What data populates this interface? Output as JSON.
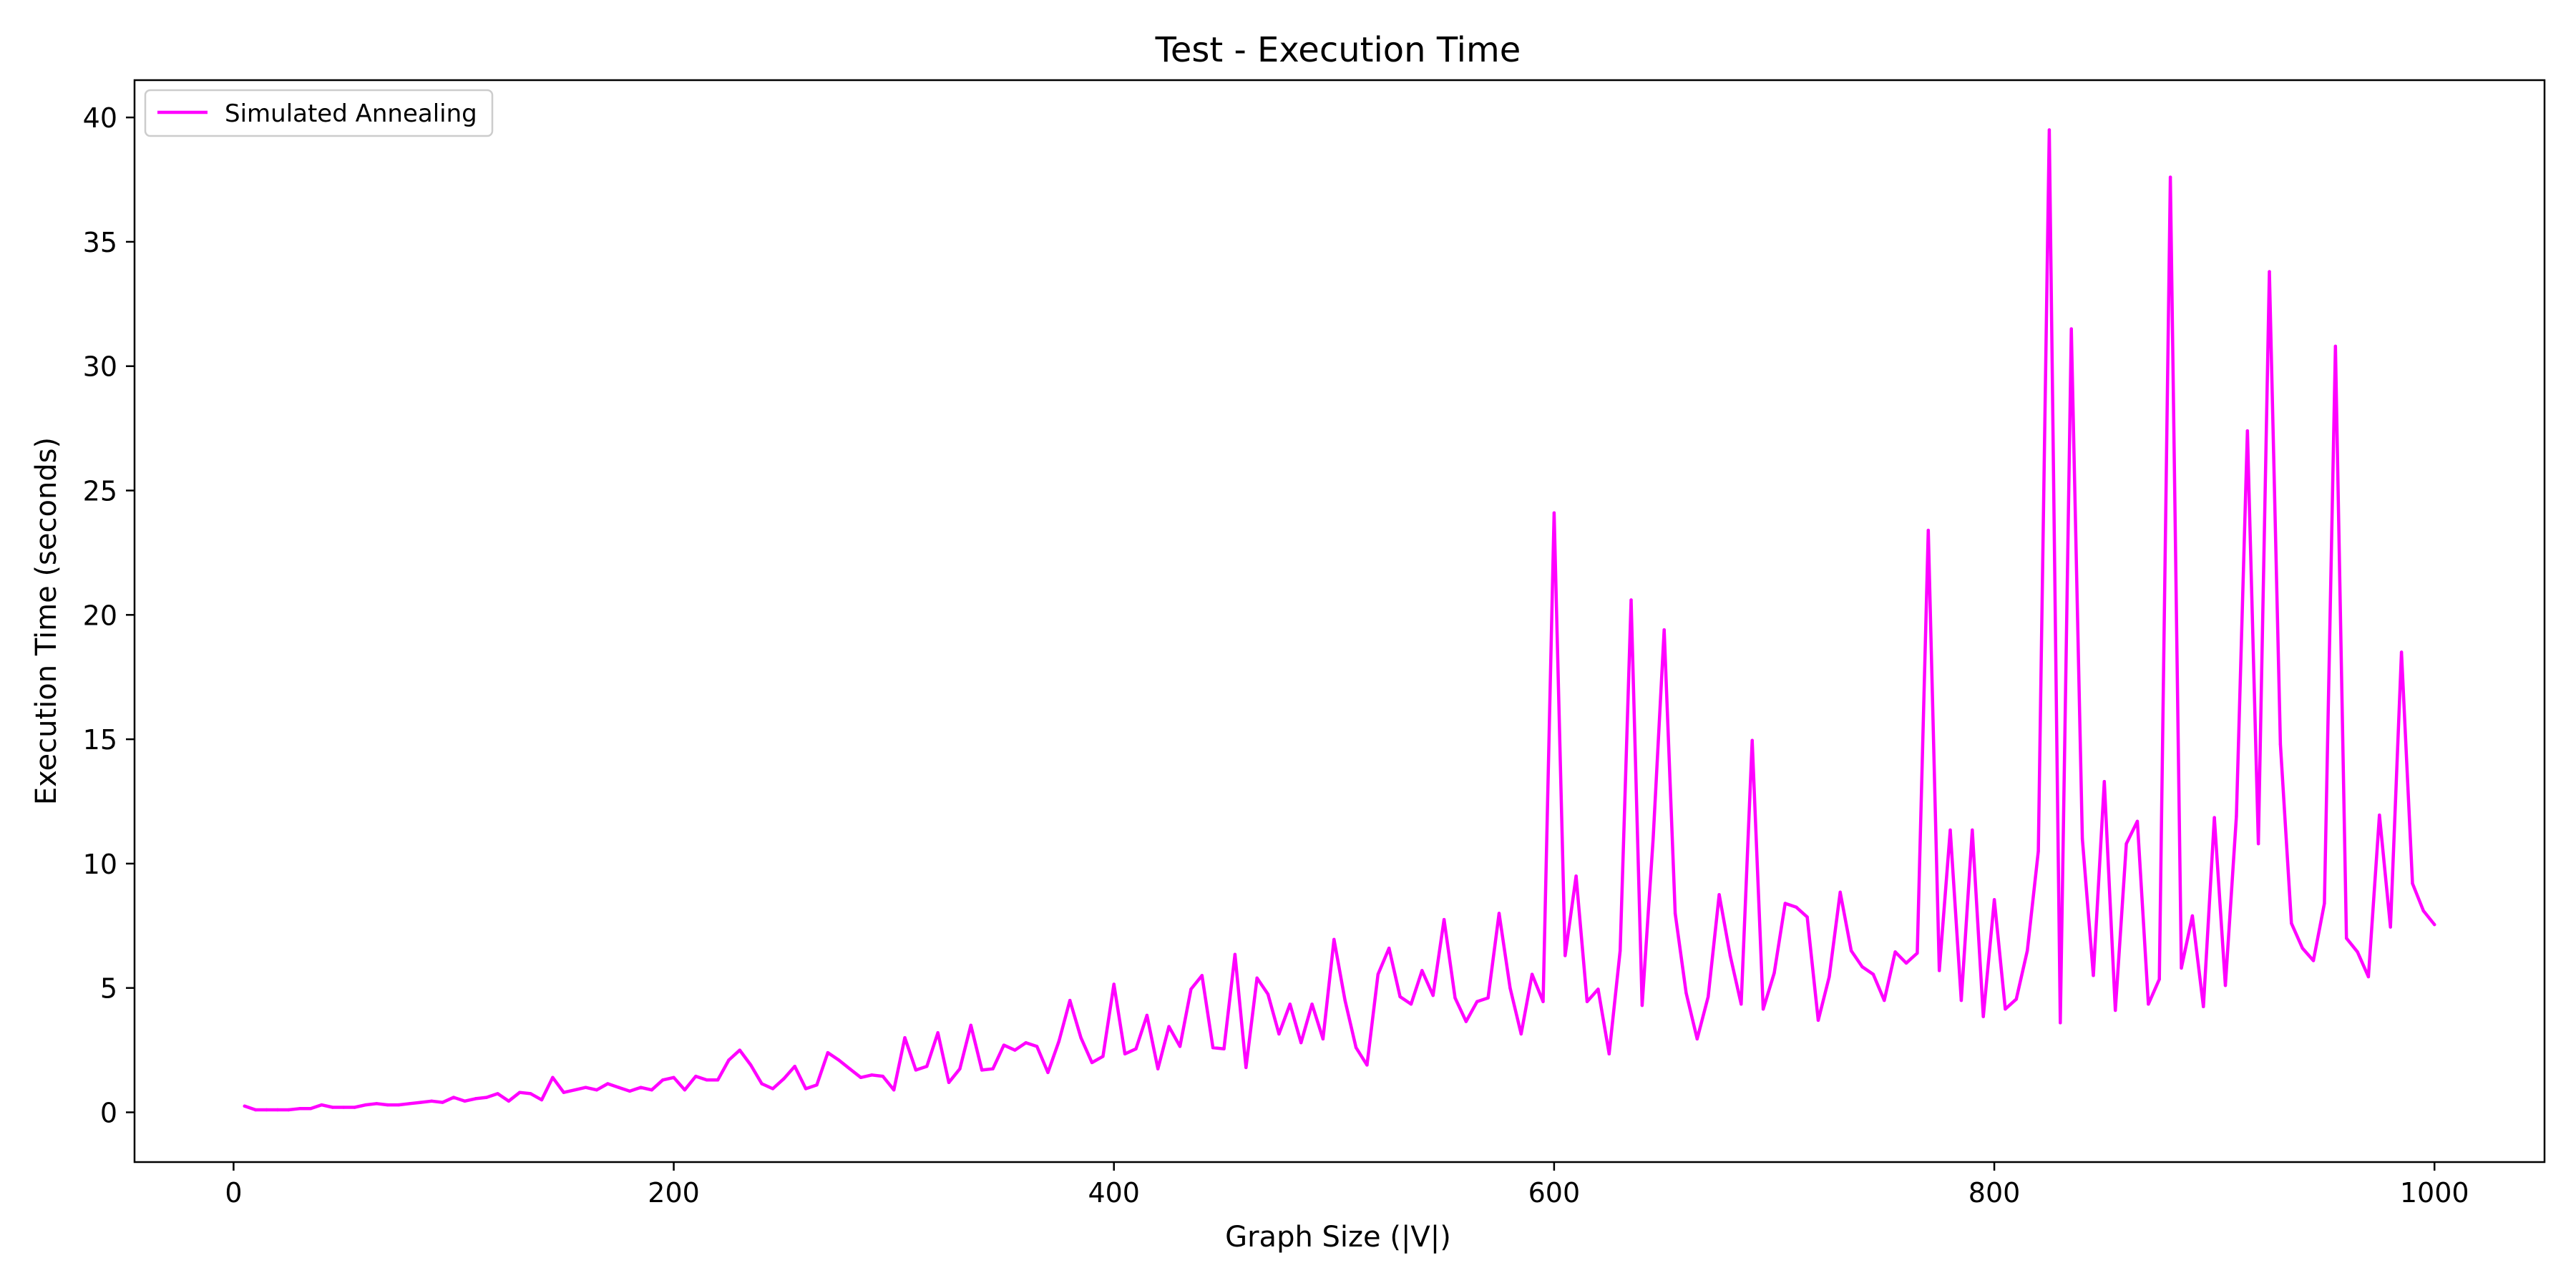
{
  "chart_data": {
    "type": "line",
    "title": "Test - Execution Time",
    "xlabel": "Graph Size (|V|)",
    "ylabel": "Execution Time (seconds)",
    "xlim": [
      -45,
      1050
    ],
    "ylim": [
      -2,
      41.5
    ],
    "xticks": [
      0,
      200,
      400,
      600,
      800,
      1000
    ],
    "yticks": [
      0,
      5,
      10,
      15,
      20,
      25,
      30,
      35,
      40
    ],
    "grid": false,
    "legend_position": "top-left",
    "series": [
      {
        "name": "Simulated Annealing",
        "color": "#ff00ff",
        "x": [
          5,
          10,
          15,
          20,
          25,
          30,
          35,
          40,
          45,
          50,
          55,
          60,
          65,
          70,
          75,
          80,
          85,
          90,
          95,
          100,
          105,
          110,
          115,
          120,
          125,
          130,
          135,
          140,
          145,
          150,
          155,
          160,
          165,
          170,
          175,
          180,
          185,
          190,
          195,
          200,
          205,
          210,
          215,
          220,
          225,
          230,
          235,
          240,
          245,
          250,
          255,
          260,
          265,
          270,
          275,
          280,
          285,
          290,
          295,
          300,
          305,
          310,
          315,
          320,
          325,
          330,
          335,
          340,
          345,
          350,
          355,
          360,
          365,
          370,
          375,
          380,
          385,
          390,
          395,
          400,
          405,
          410,
          415,
          420,
          425,
          430,
          435,
          440,
          445,
          450,
          455,
          460,
          465,
          470,
          475,
          480,
          485,
          490,
          495,
          500,
          505,
          510,
          515,
          520,
          525,
          530,
          535,
          540,
          545,
          550,
          555,
          560,
          565,
          570,
          575,
          580,
          585,
          590,
          595,
          600,
          605,
          610,
          615,
          620,
          625,
          630,
          635,
          640,
          645,
          650,
          655,
          660,
          665,
          670,
          675,
          680,
          685,
          690,
          695,
          700,
          705,
          710,
          715,
          720,
          725,
          730,
          735,
          740,
          745,
          750,
          755,
          760,
          765,
          770,
          775,
          780,
          785,
          790,
          795,
          800,
          805,
          810,
          815,
          820,
          825,
          830,
          835,
          840,
          845,
          850,
          855,
          860,
          865,
          870,
          875,
          880,
          885,
          890,
          895,
          900,
          905,
          910,
          915,
          920,
          925,
          930,
          935,
          940,
          945,
          950,
          955,
          960,
          965,
          970,
          975,
          980,
          985,
          990,
          995,
          1000
        ],
        "y": [
          0.25,
          0.1,
          0.1,
          0.1,
          0.1,
          0.15,
          0.15,
          0.3,
          0.2,
          0.2,
          0.2,
          0.3,
          0.35,
          0.3,
          0.3,
          0.35,
          0.4,
          0.45,
          0.4,
          0.6,
          0.45,
          0.55,
          0.6,
          0.75,
          0.45,
          0.8,
          0.75,
          0.5,
          1.4,
          0.8,
          0.9,
          1.0,
          0.9,
          1.15,
          1.0,
          0.85,
          1.0,
          0.9,
          1.3,
          1.4,
          0.9,
          1.45,
          1.3,
          1.3,
          2.1,
          2.5,
          1.9,
          1.15,
          0.95,
          1.35,
          1.85,
          0.95,
          1.1,
          2.4,
          2.1,
          1.75,
          1.4,
          1.5,
          1.45,
          0.9,
          3.0,
          1.7,
          1.85,
          3.2,
          1.2,
          1.75,
          3.5,
          1.7,
          1.75,
          2.7,
          2.5,
          2.8,
          2.65,
          1.6,
          2.85,
          4.5,
          3.0,
          2.0,
          2.25,
          5.15,
          2.35,
          2.55,
          3.9,
          1.75,
          3.45,
          2.65,
          4.95,
          5.5,
          2.6,
          2.55,
          6.35,
          1.8,
          5.4,
          4.75,
          3.15,
          4.35,
          2.8,
          4.35,
          2.95,
          6.95,
          4.5,
          2.6,
          1.9,
          5.55,
          6.6,
          4.65,
          4.35,
          5.7,
          4.7,
          7.75,
          4.6,
          3.65,
          4.45,
          4.6,
          8.0,
          5.0,
          3.15,
          5.55,
          4.45,
          24.1,
          6.3,
          9.5,
          4.45,
          4.95,
          2.35,
          6.5,
          20.6,
          4.3,
          11.0,
          19.4,
          8.0,
          4.8,
          2.95,
          4.65,
          8.75,
          6.3,
          4.35,
          14.95,
          4.15,
          5.6,
          8.4,
          8.25,
          7.85,
          3.7,
          5.45,
          8.85,
          6.5,
          5.85,
          5.55,
          4.5,
          6.45,
          6.0,
          6.4,
          23.4,
          5.7,
          11.35,
          4.5,
          11.35,
          3.85,
          8.55,
          4.15,
          4.55,
          6.5,
          10.5,
          39.5,
          3.6,
          31.5,
          11.0,
          5.5,
          13.3,
          4.1,
          10.8,
          11.7,
          4.35,
          5.35,
          37.6,
          5.8,
          7.9,
          4.25,
          11.85,
          5.1,
          11.9,
          27.4,
          10.8,
          33.8,
          14.8,
          7.6,
          6.6,
          6.1,
          8.4,
          30.8,
          7.0,
          6.45,
          5.45,
          11.95,
          7.45,
          18.5,
          9.2,
          8.1,
          7.55
        ]
      }
    ]
  }
}
